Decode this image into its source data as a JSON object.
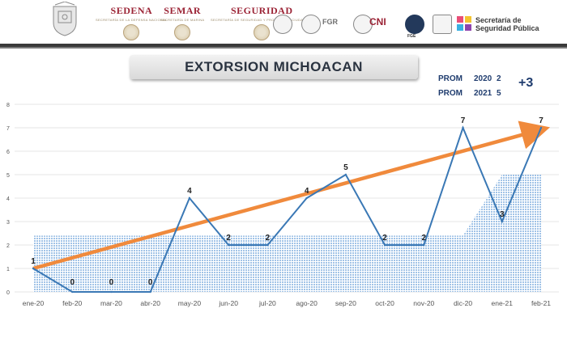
{
  "header": {
    "logos": [
      {
        "name": "SEDENA",
        "sub": "SECRETARÍA DE LA DEFENSA NACIONAL"
      },
      {
        "name": "SEMAR",
        "sub": "SECRETARÍA DE MARINA"
      },
      {
        "name": "SEGURIDAD",
        "sub": "SECRETARÍA DE SEGURIDAD Y PROTECCIÓN CIUDADANA"
      }
    ],
    "fgr": "FGR",
    "cni": "CNI",
    "fge": "FGE",
    "sesp_line1": "Secretaría de",
    "sesp_line2": "Seguridad Pública"
  },
  "colors": {
    "line": "#3a78b5",
    "trend": "#f08a3c",
    "area": "#9cc0e6",
    "grid": "#e6e6e6",
    "axis_text": "#555555"
  },
  "chart_data": {
    "type": "line",
    "title": "EXTORSION MICHOACAN",
    "categories": [
      "ene-20",
      "feb-20",
      "mar-20",
      "abr-20",
      "may-20",
      "jun-20",
      "jul-20",
      "ago-20",
      "sep-20",
      "oct-20",
      "nov-20",
      "dic-20",
      "ene-21",
      "feb-21"
    ],
    "series": [
      {
        "values": [
          1,
          0,
          0,
          0,
          4,
          2,
          2,
          4,
          5,
          2,
          2,
          7,
          3,
          7
        ]
      }
    ],
    "area_average": {
      "values": [
        2.4,
        2.4,
        2.4,
        2.4,
        2.4,
        2.4,
        2.4,
        2.4,
        2.4,
        2.4,
        2.4,
        2.4,
        5,
        5
      ]
    },
    "trend": {
      "from": 1,
      "to": 6.9
    },
    "data_labels": [
      "1",
      "0",
      "0",
      "0",
      "4",
      "2",
      "2",
      "4",
      "5",
      "2",
      "2",
      "7",
      "3",
      "7"
    ],
    "y_ticks": [
      "0",
      "1",
      "2",
      "3",
      "4",
      "5",
      "6",
      "7",
      "8"
    ],
    "ylim": [
      0,
      8
    ],
    "grid": true,
    "prom": [
      {
        "label": "PROM",
        "year": "2020",
        "value": "2"
      },
      {
        "label": "PROM",
        "year": "2021",
        "value": "5"
      }
    ],
    "change": "+3"
  }
}
